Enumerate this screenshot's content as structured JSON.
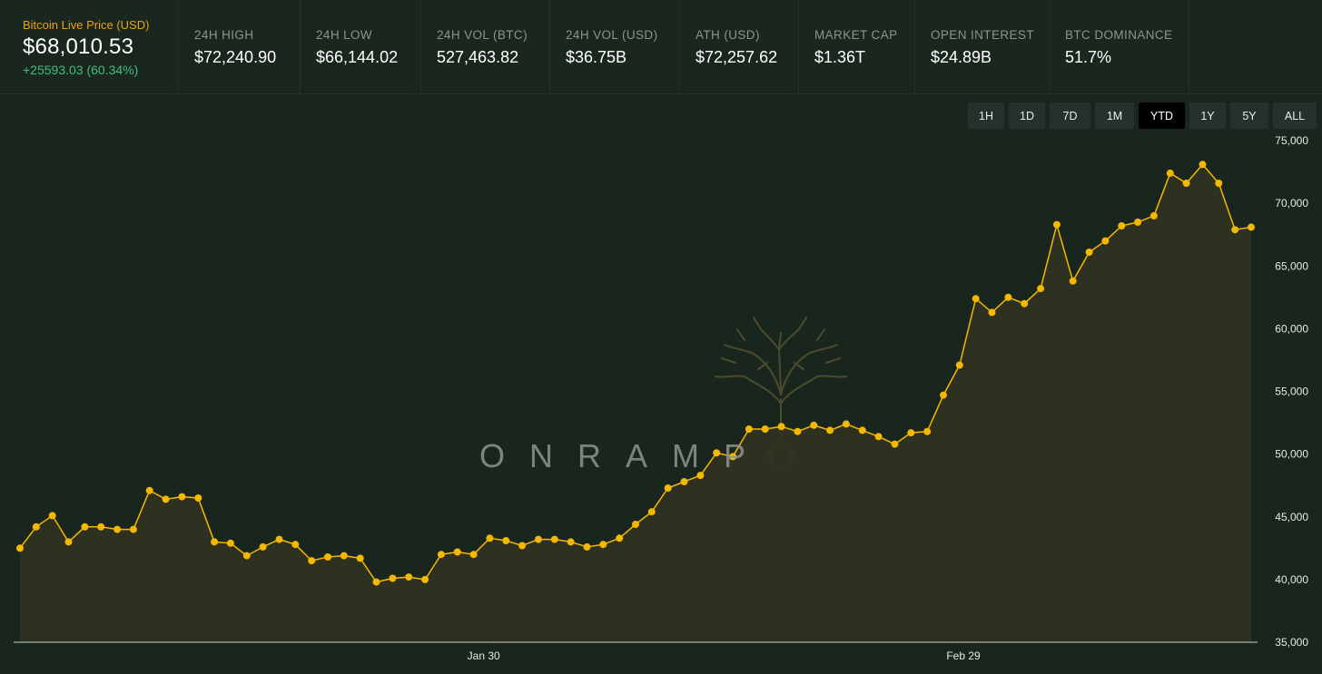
{
  "header": {
    "main": {
      "label": "Bitcoin Live Price (USD)",
      "price": "$68,010.53",
      "change": "+25593.03 (60.34%)"
    },
    "stats": [
      {
        "label": "24H HIGH",
        "value": "$72,240.90"
      },
      {
        "label": "24H LOW",
        "value": "$66,144.02"
      },
      {
        "label": "24H VOL (BTC)",
        "value": "527,463.82"
      },
      {
        "label": "24H VOL (USD)",
        "value": "$36.75B"
      },
      {
        "label": "ATH (USD)",
        "value": "$72,257.62"
      },
      {
        "label": "MARKET CAP",
        "value": "$1.36T"
      },
      {
        "label": "OPEN INTEREST",
        "value": "$24.89B"
      },
      {
        "label": "BTC DOMINANCE",
        "value": "51.7%"
      }
    ]
  },
  "range_buttons": [
    {
      "label": "1H",
      "active": false
    },
    {
      "label": "1D",
      "active": false
    },
    {
      "label": "7D",
      "active": false
    },
    {
      "label": "1M",
      "active": false
    },
    {
      "label": "YTD",
      "active": true
    },
    {
      "label": "1Y",
      "active": false
    },
    {
      "label": "5Y",
      "active": false
    },
    {
      "label": "ALL",
      "active": false
    }
  ],
  "watermark": {
    "text": "ONRAMP"
  },
  "colors": {
    "line": "#f5b800",
    "area": "#2f3220",
    "background": "#19261e",
    "positive": "#3fbf7f",
    "accent": "#e8a317"
  },
  "chart_data": {
    "type": "area",
    "title": "",
    "xlabel": "",
    "ylabel": "",
    "ylim": [
      35000,
      75000
    ],
    "yticks": [
      35000,
      40000,
      45000,
      50000,
      55000,
      60000,
      65000,
      70000,
      75000
    ],
    "ytick_labels": [
      "35,000",
      "40,000",
      "45,000",
      "50,000",
      "55,000",
      "60,000",
      "65,000",
      "70,000",
      "75,000"
    ],
    "xtick_labels": [
      {
        "label": "Jan 30",
        "date": "2024-01-30"
      },
      {
        "label": "Feb 29",
        "date": "2024-02-29"
      }
    ],
    "x_start": "2024-01-01",
    "x_end": "2024-03-18",
    "series": [
      {
        "values": [
          42500,
          44200,
          45100,
          43000,
          44200,
          44200,
          44000,
          44000,
          47100,
          46400,
          46600,
          46500,
          43000,
          42900,
          41900,
          42600,
          43200,
          42800,
          41500,
          41800,
          41900,
          41700,
          39800,
          40100,
          40200,
          40000,
          42000,
          42200,
          42000,
          43300,
          43100,
          42700,
          43200,
          43200,
          43000,
          42600,
          42800,
          43300,
          44400,
          45400,
          47300,
          47800,
          48300,
          50100,
          49800,
          52000,
          52000,
          52200,
          51800,
          52300,
          51900,
          52400,
          51900,
          51400,
          50800,
          51700,
          51800,
          54700,
          57100,
          62400,
          61300,
          62500,
          62000,
          63200,
          68300,
          63800,
          66100,
          67000,
          68200,
          68500,
          69000,
          72400,
          71600,
          73100,
          71600,
          67900,
          68100
        ]
      }
    ]
  }
}
